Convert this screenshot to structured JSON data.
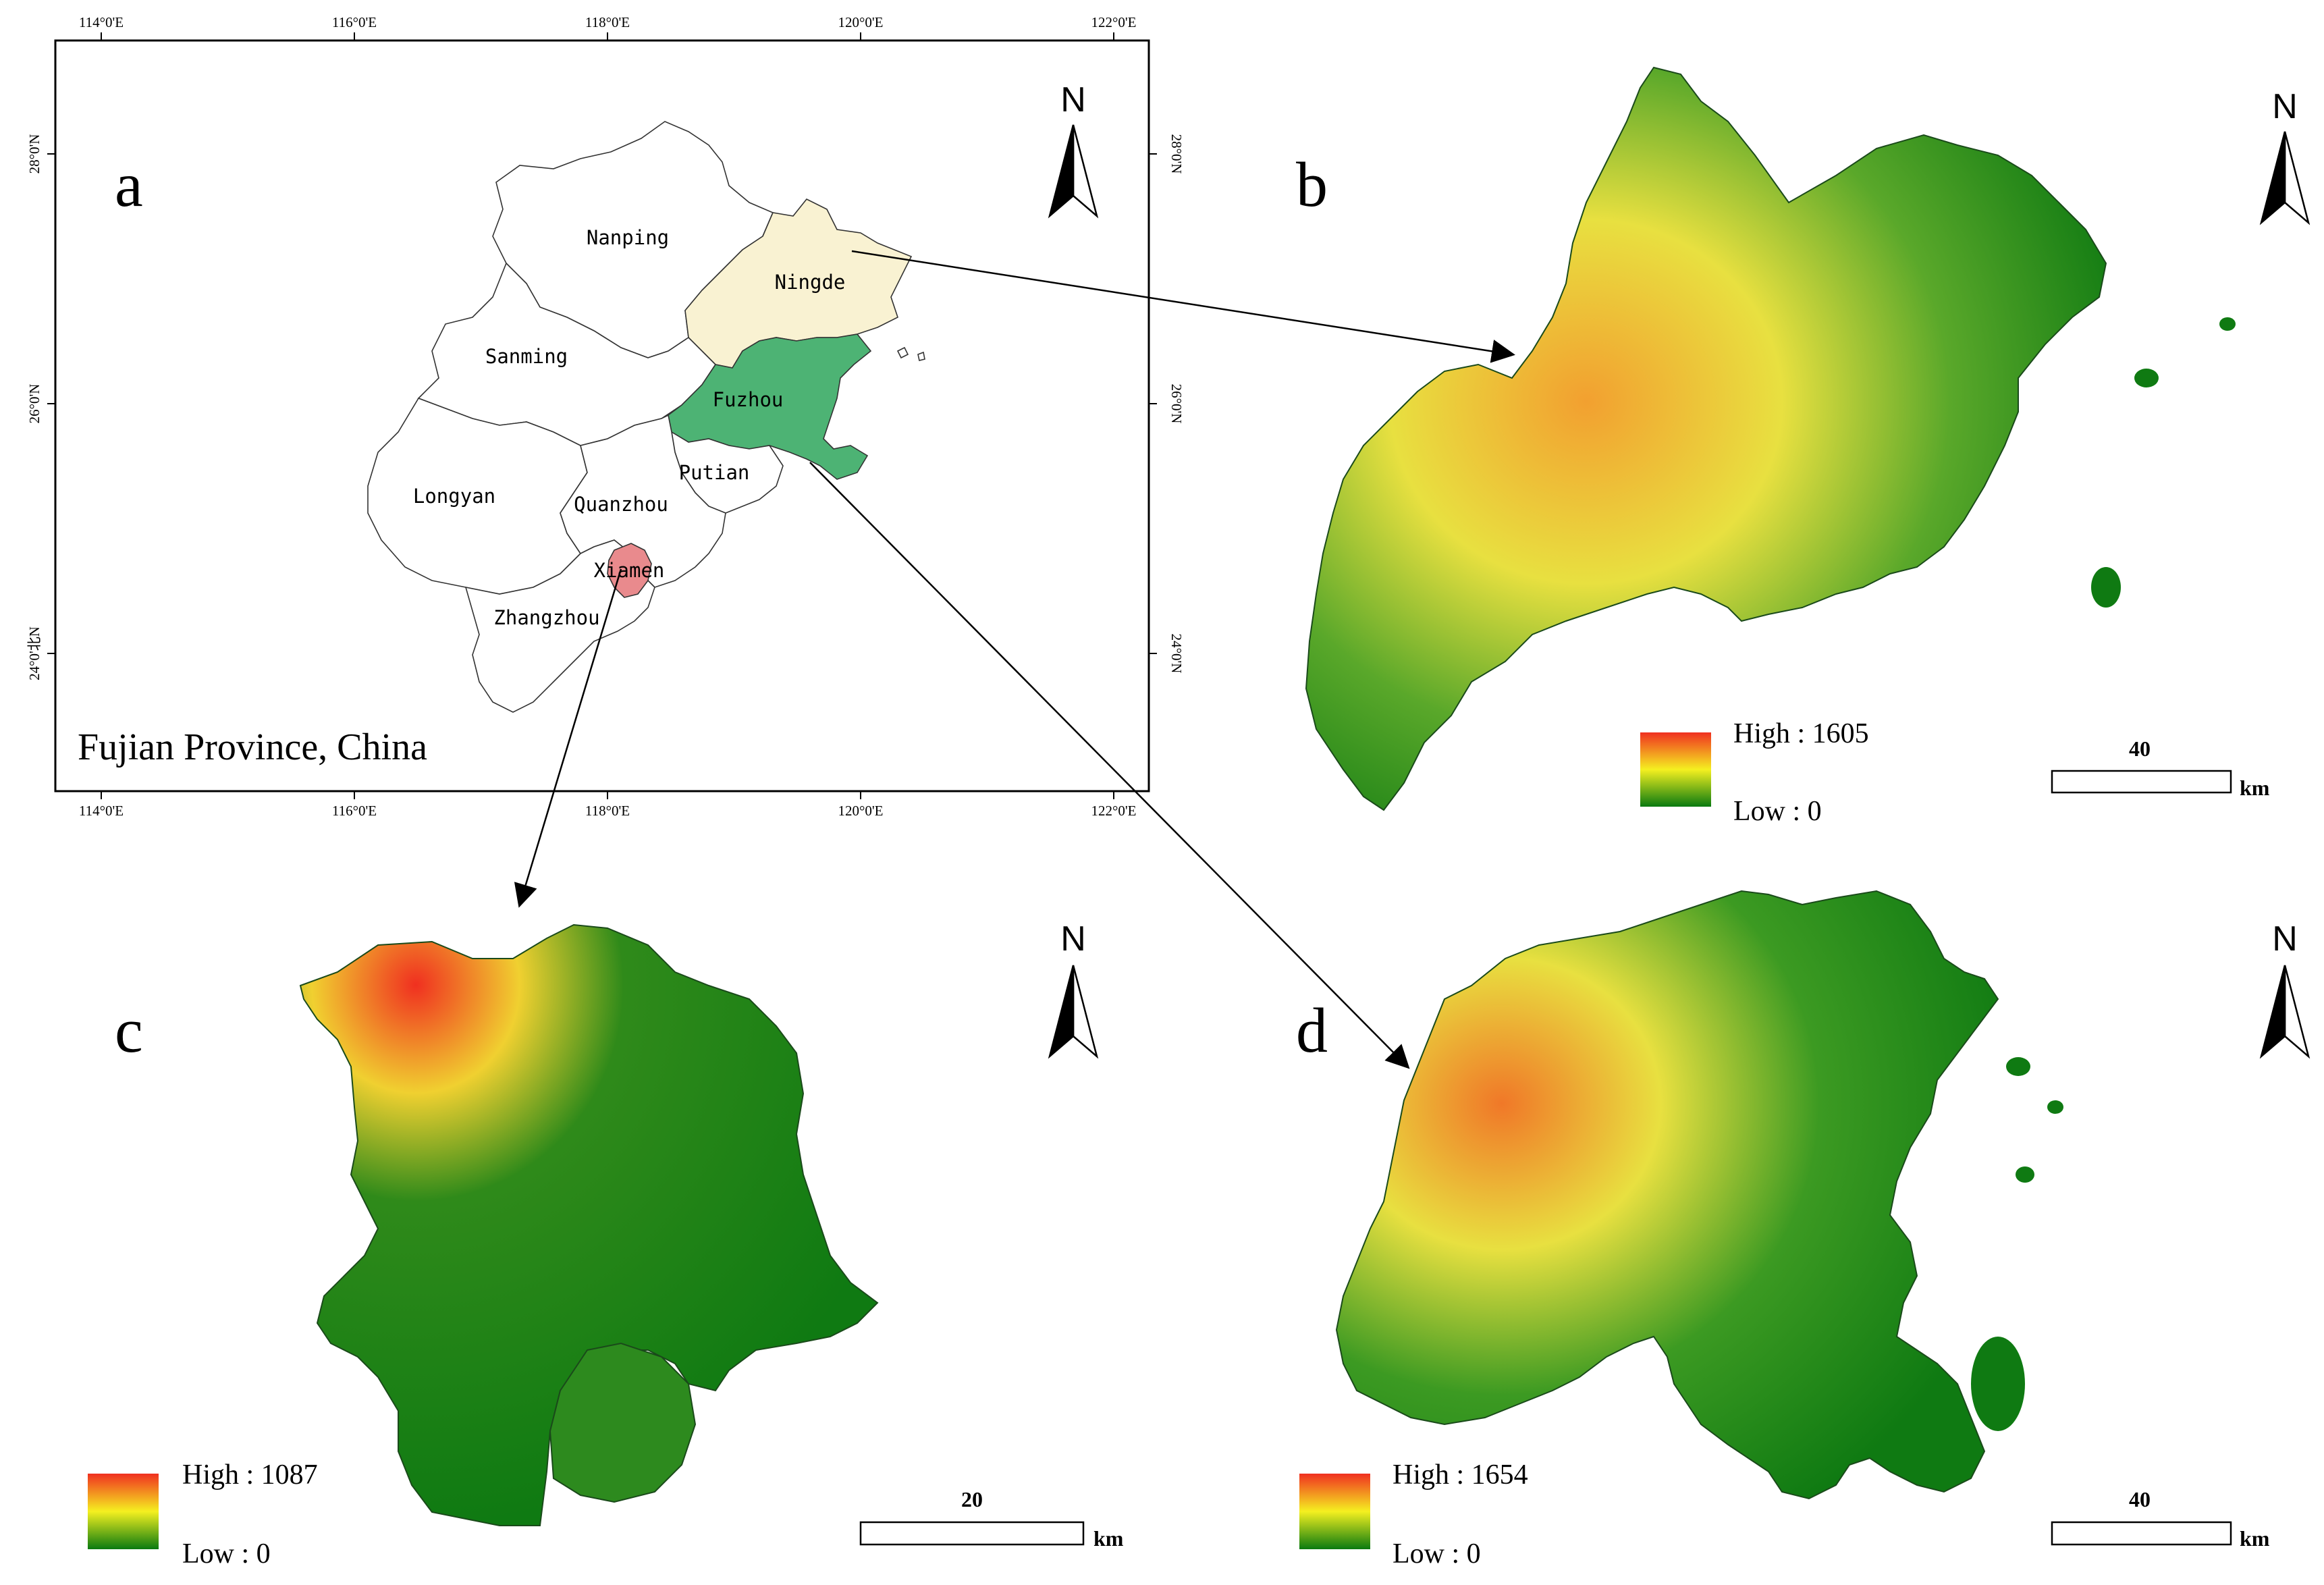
{
  "panels": {
    "a": {
      "letter": "a",
      "title": "Fujian Province, China",
      "north": "N",
      "lon_ticks": [
        "114°0'E",
        "116°0'E",
        "118°0'E",
        "120°0'E",
        "122°0'E"
      ],
      "lat_ticks_left": [
        "28°0'N",
        "26°0'N",
        "24°0'北N"
      ],
      "lat_ticks_right": [
        "28°0'N",
        "26°0'N",
        "24°0'N"
      ],
      "cities": {
        "nanping": "Nanping",
        "ningde": "Ningde",
        "sanming": "Sanming",
        "fuzhou": "Fuzhou",
        "longyan": "Longyan",
        "putian": "Putian",
        "quanzhou": "Quanzhou",
        "xiamen": "Xiamen",
        "zhangzhou": "Zhangzhou"
      },
      "highlight_colors": {
        "ningde": "#f9f2d2",
        "fuzhou": "#4db374",
        "xiamen": "#e98a8d"
      }
    },
    "b": {
      "letter": "b",
      "north": "N",
      "legend_high": "High : 1605",
      "legend_low": "Low : 0",
      "scale_value": "40",
      "scale_unit": "km"
    },
    "c": {
      "letter": "c",
      "north": "N",
      "legend_high": "High : 1087",
      "legend_low": "Low : 0",
      "scale_value": "20",
      "scale_unit": "km"
    },
    "d": {
      "letter": "d",
      "north": "N",
      "legend_high": "High : 1654",
      "legend_low": "Low : 0",
      "scale_value": "40",
      "scale_unit": "km"
    }
  },
  "elevation_colors": {
    "high": "#f03020",
    "mid": "#f5f020",
    "low": "#0a7a10"
  }
}
